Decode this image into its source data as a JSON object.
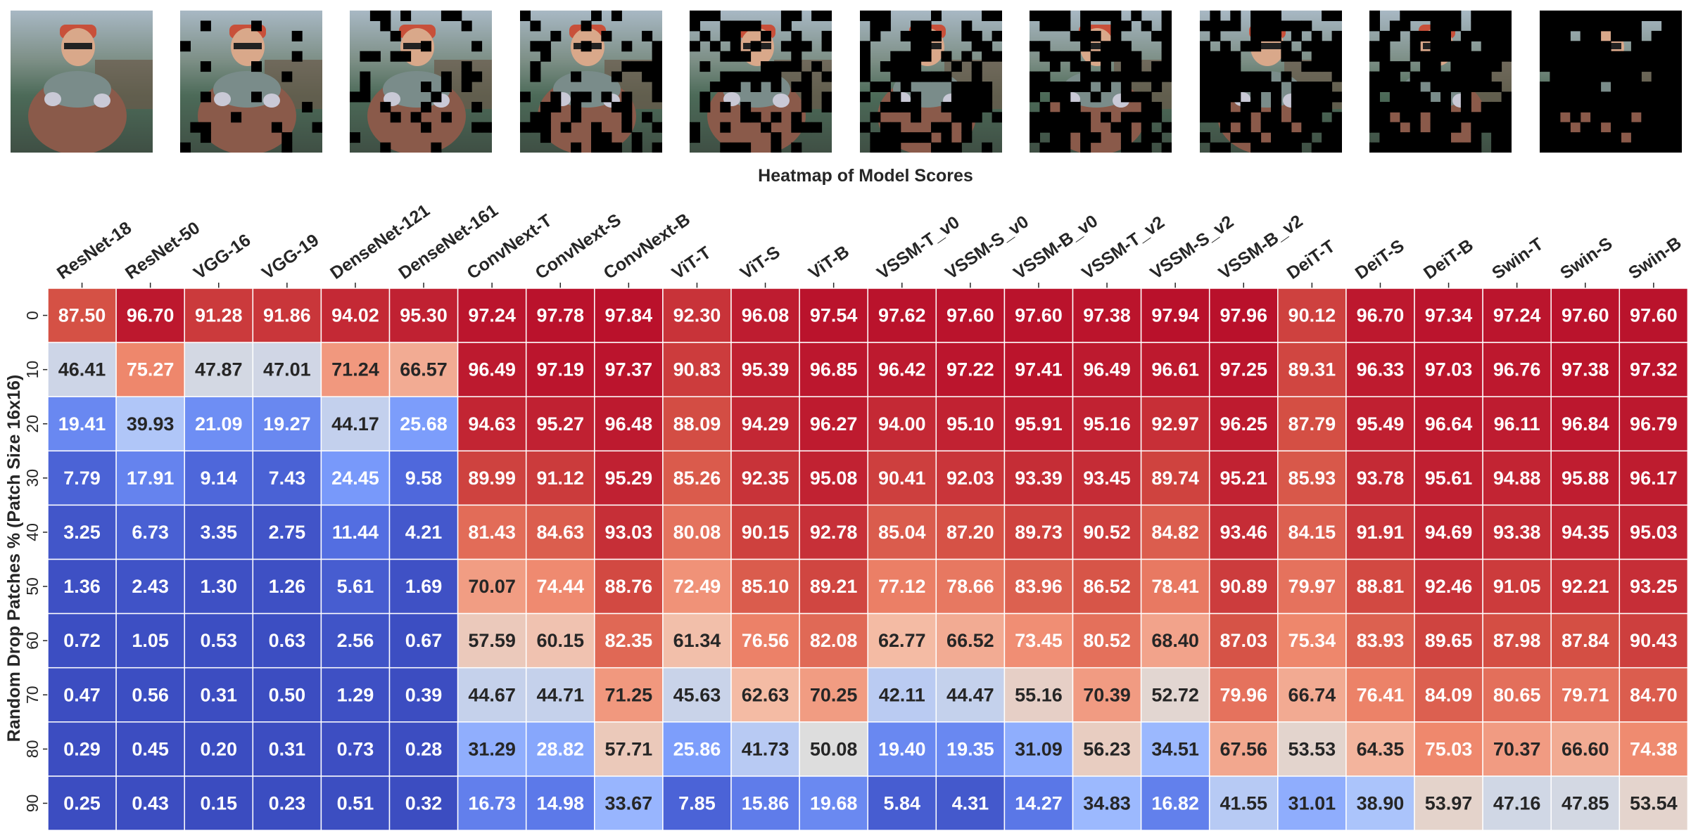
{
  "title": "Heatmap of Model Scores",
  "ylabel": "Random Drop Patches % (Patch Size 16x16)",
  "thumbnails": {
    "count": 10,
    "drop_percents": [
      0,
      10,
      20,
      30,
      40,
      50,
      60,
      70,
      80,
      90
    ],
    "description_label": "sample image with random patches dropped"
  },
  "colors": {
    "low": "#3b4cc0",
    "mid": "#dddddd",
    "high": "#b40426",
    "text_dark": "#262626",
    "text_light": "#ffffff"
  },
  "chart_data": {
    "type": "heatmap",
    "title": "Heatmap of Model Scores",
    "xlabel": "",
    "ylabel": "Random Drop Patches % (Patch Size 16x16)",
    "columns": [
      "ResNet-18",
      "ResNet-50",
      "VGG-16",
      "VGG-19",
      "DenseNet-121",
      "DenseNet-161",
      "ConvNext-T",
      "ConvNext-S",
      "ConvNext-B",
      "ViT-T",
      "ViT-S",
      "ViT-B",
      "VSSM-T_v0",
      "VSSM-S_v0",
      "VSSM-B_v0",
      "VSSM-T_v2",
      "VSSM-S_v2",
      "VSSM-B_v2",
      "DeiT-T",
      "DeiT-S",
      "DeiT-B",
      "Swin-T",
      "Swin-S",
      "Swin-B"
    ],
    "rows": [
      "0",
      "10",
      "20",
      "30",
      "40",
      "50",
      "60",
      "70",
      "80",
      "90"
    ],
    "value_range": [
      0,
      100
    ],
    "colormap": "coolwarm",
    "values": [
      [
        87.5,
        96.7,
        91.28,
        91.86,
        94.02,
        95.3,
        97.24,
        97.78,
        97.84,
        92.3,
        96.08,
        97.54,
        97.62,
        97.6,
        97.6,
        97.38,
        97.94,
        97.96,
        90.12,
        96.7,
        97.34,
        97.24,
        97.6,
        97.6
      ],
      [
        46.41,
        75.27,
        47.87,
        47.01,
        71.24,
        66.57,
        96.49,
        97.19,
        97.37,
        90.83,
        95.39,
        96.85,
        96.42,
        97.22,
        97.41,
        96.49,
        96.61,
        97.25,
        89.31,
        96.33,
        97.03,
        96.76,
        97.38,
        97.32
      ],
      [
        19.41,
        39.93,
        21.09,
        19.27,
        44.17,
        25.68,
        94.63,
        95.27,
        96.48,
        88.09,
        94.29,
        96.27,
        94.0,
        95.1,
        95.91,
        95.16,
        92.97,
        96.25,
        87.79,
        95.49,
        96.64,
        96.11,
        96.84,
        96.79
      ],
      [
        7.79,
        17.91,
        9.14,
        7.43,
        24.45,
        9.58,
        89.99,
        91.12,
        95.29,
        85.26,
        92.35,
        95.08,
        90.41,
        92.03,
        93.39,
        93.45,
        89.74,
        95.21,
        85.93,
        93.78,
        95.61,
        94.88,
        95.88,
        96.17
      ],
      [
        3.25,
        6.73,
        3.35,
        2.75,
        11.44,
        4.21,
        81.43,
        84.63,
        93.03,
        80.08,
        90.15,
        92.78,
        85.04,
        87.2,
        89.73,
        90.52,
        84.82,
        93.46,
        84.15,
        91.91,
        94.69,
        93.38,
        94.35,
        95.03
      ],
      [
        1.36,
        2.43,
        1.3,
        1.26,
        5.61,
        1.69,
        70.07,
        74.44,
        88.76,
        72.49,
        85.1,
        89.21,
        77.12,
        78.66,
        83.96,
        86.52,
        78.41,
        90.89,
        79.97,
        88.81,
        92.46,
        91.05,
        92.21,
        93.25
      ],
      [
        0.72,
        1.05,
        0.53,
        0.63,
        2.56,
        0.67,
        57.59,
        60.15,
        82.35,
        61.34,
        76.56,
        82.08,
        62.77,
        66.52,
        73.45,
        80.52,
        68.4,
        87.03,
        75.34,
        83.93,
        89.65,
        87.98,
        87.84,
        90.43
      ],
      [
        0.47,
        0.56,
        0.31,
        0.5,
        1.29,
        0.39,
        44.67,
        44.71,
        71.25,
        45.63,
        62.63,
        70.25,
        42.11,
        44.47,
        55.16,
        70.39,
        52.72,
        79.96,
        66.74,
        76.41,
        84.09,
        80.65,
        79.71,
        84.7
      ],
      [
        0.29,
        0.45,
        0.2,
        0.31,
        0.73,
        0.28,
        31.29,
        28.82,
        57.71,
        25.86,
        41.73,
        50.08,
        19.4,
        19.35,
        31.09,
        56.23,
        34.51,
        67.56,
        53.53,
        64.35,
        75.03,
        70.37,
        66.6,
        74.38
      ],
      [
        0.25,
        0.43,
        0.15,
        0.23,
        0.51,
        0.32,
        16.73,
        14.98,
        33.67,
        7.85,
        15.86,
        19.68,
        5.84,
        4.31,
        14.27,
        34.83,
        16.82,
        41.55,
        31.01,
        38.9,
        53.97,
        47.16,
        47.85,
        53.54
      ]
    ]
  }
}
